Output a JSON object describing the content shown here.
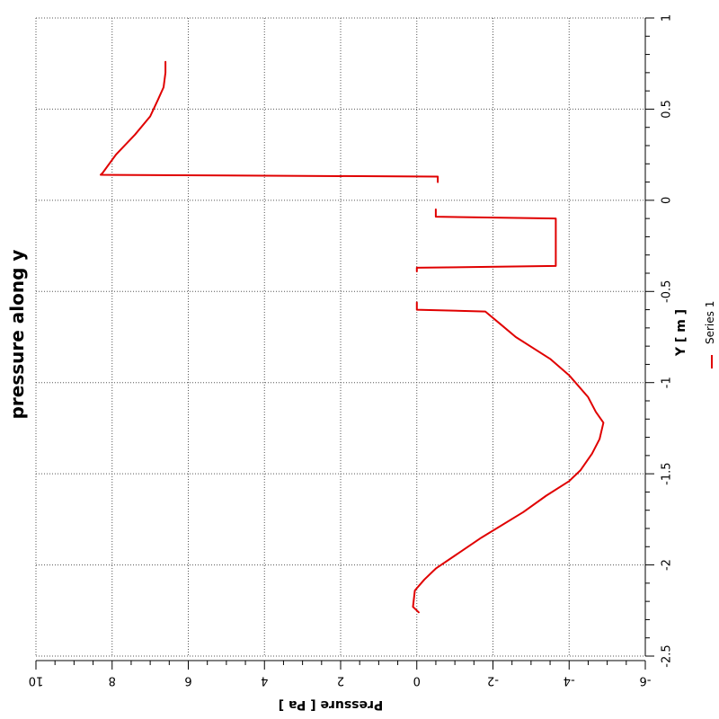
{
  "chart_data": {
    "type": "line",
    "title": "pressure along y",
    "xlabel": "Y [ m ]",
    "ylabel": "Pressure [ Pa ]",
    "xlim": [
      -2.5,
      1
    ],
    "ylim": [
      10,
      -6
    ],
    "x_ticks": [
      -2.5,
      -2,
      -1.5,
      -1,
      -0.5,
      0,
      0.5,
      1
    ],
    "x_tick_labels": [
      "-2.5",
      "-2",
      "-1.5",
      "-1",
      "-0.5",
      "0",
      "0.5",
      "1"
    ],
    "y_ticks": [
      10,
      8,
      6,
      4,
      2,
      0,
      -2,
      -4,
      -6
    ],
    "y_tick_labels": [
      "10",
      "8",
      "6",
      "4",
      "2",
      "0",
      "-2",
      "-4",
      "-6"
    ],
    "grid": true,
    "rotated": "90deg-clockwise",
    "legend_position": "bottom-right",
    "line_color": "#e00000",
    "series": [
      {
        "name": "Series 1",
        "segments": [
          [
            [
              -2.26,
              -0.05
            ],
            [
              -2.23,
              0.1
            ],
            [
              -2.14,
              0.05
            ],
            [
              -2.08,
              -0.2
            ],
            [
              -2.02,
              -0.5
            ],
            [
              -1.85,
              -1.7
            ],
            [
              -1.71,
              -2.8
            ],
            [
              -1.62,
              -3.4
            ],
            [
              -1.54,
              -4.0
            ],
            [
              -1.48,
              -4.3
            ],
            [
              -1.39,
              -4.6
            ],
            [
              -1.31,
              -4.8
            ],
            [
              -1.22,
              -4.9
            ],
            [
              -1.16,
              -4.7
            ],
            [
              -1.08,
              -4.5
            ],
            [
              -0.96,
              -4.0
            ],
            [
              -0.87,
              -3.5
            ],
            [
              -0.75,
              -2.6
            ],
            [
              -0.68,
              -2.2
            ],
            [
              -0.61,
              -1.8
            ],
            [
              -0.6,
              0.0
            ],
            [
              -0.56,
              0.0
            ]
          ],
          [
            [
              -0.39,
              0.0
            ],
            [
              -0.37,
              0.0
            ],
            [
              -0.36,
              -3.65
            ],
            [
              -0.1,
              -3.65
            ],
            [
              -0.09,
              -0.5
            ],
            [
              -0.05,
              -0.5
            ]
          ],
          [
            [
              0.1,
              -0.55
            ],
            [
              0.13,
              -0.55
            ],
            [
              0.14,
              8.3
            ],
            [
              0.15,
              8.25
            ],
            [
              0.25,
              7.9
            ],
            [
              0.36,
              7.4
            ],
            [
              0.46,
              7.0
            ],
            [
              0.55,
              6.8
            ],
            [
              0.62,
              6.65
            ],
            [
              0.7,
              6.6
            ],
            [
              0.76,
              6.6
            ]
          ]
        ]
      }
    ]
  }
}
